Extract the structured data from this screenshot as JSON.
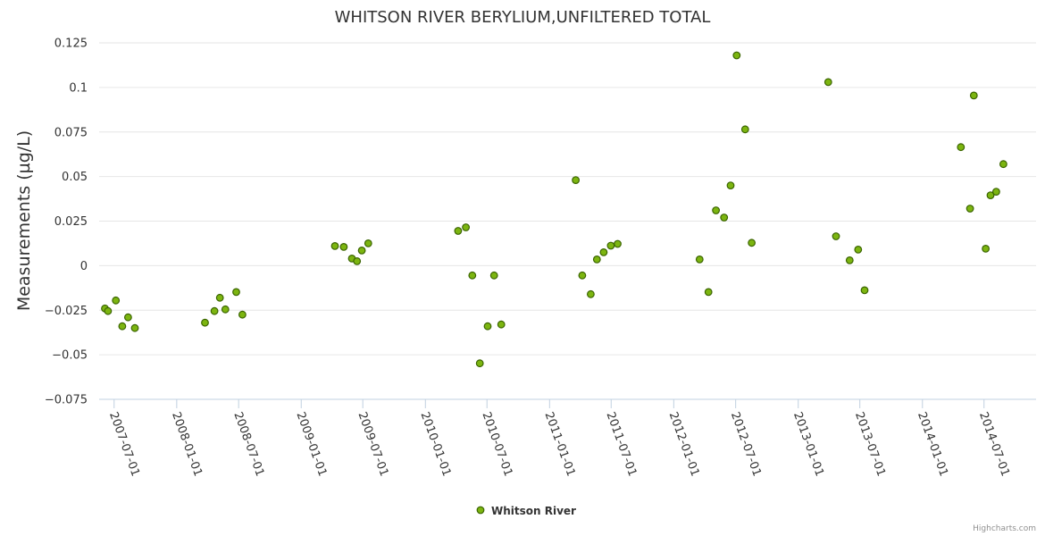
{
  "chart_data": {
    "type": "scatter",
    "title": "WHITSON RIVER BERYLIUM,UNFILTERED TOTAL",
    "xlabel": "",
    "ylabel": "Measurements (µg/L)",
    "ylim": [
      -0.075,
      0.125
    ],
    "yticks": [
      "0.125",
      "0.1",
      "0.075",
      "0.05",
      "0.025",
      "0",
      "−0.025",
      "−0.05",
      "−0.075"
    ],
    "ytick_values": [
      0.125,
      0.1,
      0.075,
      0.05,
      0.025,
      0,
      -0.025,
      -0.05,
      -0.075
    ],
    "xlim": [
      "2007-05-18",
      "2014-12-01"
    ],
    "xticks": [
      "2007-07-01",
      "2008-01-01",
      "2008-07-01",
      "2009-01-01",
      "2009-07-01",
      "2010-01-01",
      "2010-07-01",
      "2011-01-01",
      "2011-07-01",
      "2012-01-01",
      "2012-07-01",
      "2013-01-01",
      "2013-07-01",
      "2014-01-01",
      "2014-07-01"
    ],
    "grid": true,
    "legend_position": "bottom-center",
    "series_color": "#7cb510",
    "series_border": "#3a6400",
    "series": [
      {
        "name": "Whitson River",
        "points": [
          {
            "x": "2007-06-04",
            "y": -0.024
          },
          {
            "x": "2007-06-13",
            "y": -0.0255
          },
          {
            "x": "2007-07-06",
            "y": -0.0195
          },
          {
            "x": "2007-07-25",
            "y": -0.034
          },
          {
            "x": "2007-08-11",
            "y": -0.029
          },
          {
            "x": "2007-08-31",
            "y": -0.035
          },
          {
            "x": "2008-03-24",
            "y": -0.032
          },
          {
            "x": "2008-04-21",
            "y": -0.0255
          },
          {
            "x": "2008-05-07",
            "y": -0.018
          },
          {
            "x": "2008-05-23",
            "y": -0.0245
          },
          {
            "x": "2008-06-24",
            "y": -0.0148
          },
          {
            "x": "2008-07-12",
            "y": -0.0275
          },
          {
            "x": "2009-04-10",
            "y": 0.011
          },
          {
            "x": "2009-05-06",
            "y": 0.0105
          },
          {
            "x": "2009-05-30",
            "y": 0.004
          },
          {
            "x": "2009-06-14",
            "y": 0.0025
          },
          {
            "x": "2009-06-28",
            "y": 0.0085
          },
          {
            "x": "2009-07-17",
            "y": 0.0125
          },
          {
            "x": "2010-04-07",
            "y": 0.0195
          },
          {
            "x": "2010-04-30",
            "y": 0.0215
          },
          {
            "x": "2010-05-19",
            "y": -0.0055
          },
          {
            "x": "2010-06-10",
            "y": -0.0548
          },
          {
            "x": "2010-07-03",
            "y": -0.034
          },
          {
            "x": "2010-07-22",
            "y": -0.0055
          },
          {
            "x": "2010-08-12",
            "y": -0.033
          },
          {
            "x": "2011-03-19",
            "y": 0.048
          },
          {
            "x": "2011-04-07",
            "y": -0.0055
          },
          {
            "x": "2011-05-02",
            "y": -0.016
          },
          {
            "x": "2011-05-20",
            "y": 0.0035
          },
          {
            "x": "2011-06-09",
            "y": 0.0075
          },
          {
            "x": "2011-06-30",
            "y": 0.0112
          },
          {
            "x": "2011-07-20",
            "y": 0.0122
          },
          {
            "x": "2012-03-17",
            "y": 0.0035
          },
          {
            "x": "2012-04-12",
            "y": -0.0148
          },
          {
            "x": "2012-05-04",
            "y": 0.031
          },
          {
            "x": "2012-05-28",
            "y": 0.027
          },
          {
            "x": "2012-06-16",
            "y": 0.045
          },
          {
            "x": "2012-07-04",
            "y": 0.118
          },
          {
            "x": "2012-07-29",
            "y": 0.0765
          },
          {
            "x": "2012-08-17",
            "y": 0.0128
          },
          {
            "x": "2013-03-30",
            "y": 0.103
          },
          {
            "x": "2013-04-22",
            "y": 0.0165
          },
          {
            "x": "2013-06-01",
            "y": 0.003
          },
          {
            "x": "2013-06-26",
            "y": 0.009
          },
          {
            "x": "2013-07-15",
            "y": -0.0138
          },
          {
            "x": "2014-04-24",
            "y": 0.0665
          },
          {
            "x": "2014-05-21",
            "y": 0.032
          },
          {
            "x": "2014-06-01",
            "y": 0.0955
          },
          {
            "x": "2014-07-06",
            "y": 0.0095
          },
          {
            "x": "2014-07-20",
            "y": 0.0395
          },
          {
            "x": "2014-08-06",
            "y": 0.0415
          },
          {
            "x": "2014-08-27",
            "y": 0.057
          }
        ]
      }
    ]
  },
  "credits": "Highcharts.com"
}
